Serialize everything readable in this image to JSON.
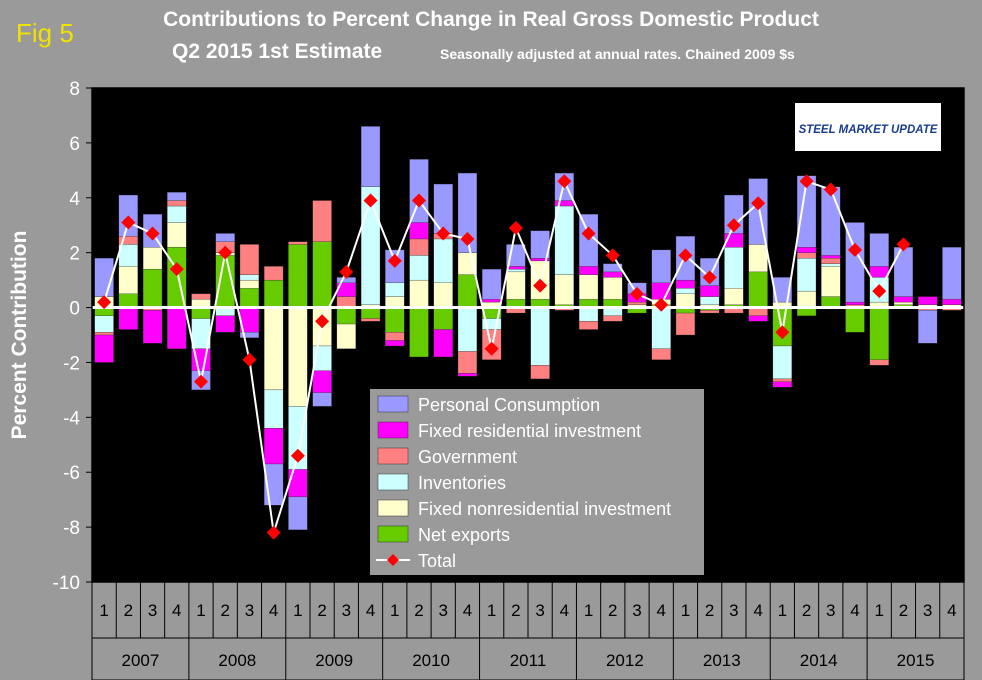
{
  "fig_label": "Fig 5",
  "title": "Contributions to Percent Change in Real Gross Domestic Product",
  "subtitle": "Q2 2015 1st Estimate",
  "note": "Seasonally adjusted at annual rates. Chained 2009 $s",
  "logo_text": "STEEL MARKET UPDATE",
  "colors": {
    "background": "#9a9a9a",
    "plot_background": "#000000",
    "personal_consumption": "#9999ff",
    "fixed_residential": "#ff00ff",
    "government": "#ff8080",
    "inventories": "#ccffff",
    "fixed_nonresidential": "#ffffcc",
    "net_exports": "#66cc00",
    "total_line": "#ffffff",
    "total_marker": "#ff0000"
  },
  "chart_data": {
    "type": "bar",
    "stacked": true,
    "title": "Contributions to Percent Change in Real Gross Domestic Product",
    "subtitle": "Q2 2015 1st Estimate",
    "ylabel": "Percent Contribution",
    "ylim": [
      -10,
      8
    ],
    "yticks": [
      "8",
      "6",
      "4",
      "2",
      "0",
      "-2",
      "-4",
      "-6",
      "-8",
      "-10"
    ],
    "grid": false,
    "legend_position": "center-bottom",
    "quarter_labels": [
      "1",
      "2",
      "3",
      "4",
      "1",
      "2",
      "3",
      "4",
      "1",
      "2",
      "3",
      "4",
      "1",
      "2",
      "3",
      "4",
      "1",
      "2",
      "3",
      "4",
      "1",
      "2",
      "3",
      "4",
      "1",
      "2",
      "3",
      "4",
      "1",
      "2",
      "3",
      "4",
      "1",
      "2",
      "3",
      "4"
    ],
    "years": [
      "2007",
      "2008",
      "2009",
      "2010",
      "2011",
      "2012",
      "2013",
      "2014",
      "2015"
    ],
    "series": [
      {
        "name": "Personal Consumption",
        "values": [
          1.4,
          1.5,
          1.2,
          0.3,
          -0.7,
          0.3,
          -0.2,
          -1.5,
          -1.2,
          -0.5,
          0.2,
          2.2,
          1.2,
          2.3,
          1.8,
          2.9,
          1.1,
          0.8,
          1.0,
          1.0,
          1.9,
          0.3,
          0.4,
          1.2,
          1.6,
          1.0,
          1.4,
          2.4,
          0.9,
          2.6,
          2.5,
          2.9,
          1.2,
          1.8,
          -1.2,
          1.9
        ]
      },
      {
        "name": "Fixed residential investment",
        "values": [
          -1.0,
          -0.8,
          -1.2,
          -1.5,
          -0.8,
          -0.6,
          -0.9,
          -1.3,
          -1.0,
          -0.8,
          0.5,
          0.0,
          -0.2,
          0.6,
          -1.0,
          -0.1,
          0.1,
          0.1,
          0.1,
          0.2,
          0.3,
          0.2,
          0.3,
          0.6,
          0.3,
          0.4,
          0.5,
          -0.2,
          -0.2,
          0.2,
          0.1,
          0.1,
          0.4,
          0.2,
          0.3,
          0.2
        ]
      },
      {
        "name": "Government",
        "values": [
          -0.1,
          0.3,
          -0.1,
          0.2,
          0.2,
          0.4,
          1.1,
          0.5,
          0.1,
          1.5,
          0.4,
          -0.1,
          -0.3,
          0.6,
          0.2,
          -0.8,
          -1.1,
          -0.2,
          -0.5,
          -0.1,
          -0.3,
          -0.2,
          0.1,
          -0.4,
          -0.8,
          -0.1,
          -0.2,
          -0.3,
          -0.1,
          0.2,
          0.2,
          0.1,
          -0.2,
          0.0,
          -0.1,
          -0.1
        ]
      },
      {
        "name": "Inventories",
        "values": [
          -0.6,
          0.8,
          0.0,
          0.6,
          -1.1,
          -0.3,
          0.2,
          -1.4,
          -2.3,
          -0.9,
          0.0,
          4.3,
          0.5,
          0.9,
          1.6,
          -1.6,
          -0.4,
          0.1,
          -2.1,
          2.5,
          -0.5,
          -0.3,
          0.0,
          -1.5,
          0.2,
          0.3,
          1.5,
          0.0,
          -1.2,
          1.2,
          0.1,
          0.0,
          0.9,
          0.0,
          0.0,
          0.0
        ]
      },
      {
        "name": "Fixed nonresidential investment",
        "values": [
          0.4,
          1.0,
          0.8,
          0.9,
          0.3,
          0.1,
          0.3,
          -3.0,
          -3.6,
          -1.4,
          -0.9,
          0.1,
          0.4,
          1.0,
          0.9,
          0.8,
          0.2,
          1.0,
          1.4,
          1.1,
          0.9,
          0.8,
          0.1,
          0.2,
          0.5,
          0.1,
          0.6,
          1.0,
          0.2,
          0.6,
          1.1,
          0.0,
          0.2,
          0.1,
          0.1,
          0.1
        ]
      },
      {
        "name": "Net exports",
        "values": [
          -0.3,
          0.5,
          1.4,
          2.2,
          -0.4,
          1.9,
          0.7,
          1.0,
          2.3,
          2.4,
          -0.6,
          -0.4,
          -0.9,
          -1.8,
          -0.8,
          1.2,
          -0.4,
          0.3,
          0.3,
          0.1,
          0.3,
          0.3,
          -0.2,
          0.1,
          -0.2,
          -0.1,
          0.1,
          1.3,
          -1.4,
          -0.3,
          0.4,
          -0.9,
          -1.9,
          0.1,
          0.0,
          0.0
        ]
      },
      {
        "name": "Total",
        "kind": "line",
        "values": [
          0.2,
          3.1,
          2.7,
          1.4,
          -2.7,
          2.0,
          -1.9,
          -8.2,
          -5.4,
          -0.5,
          1.3,
          3.9,
          1.7,
          3.9,
          2.7,
          2.5,
          -1.5,
          2.9,
          0.8,
          4.6,
          2.7,
          1.9,
          0.5,
          0.1,
          1.9,
          1.1,
          3.0,
          3.8,
          -0.9,
          4.6,
          4.3,
          2.1,
          0.6,
          2.3,
          null,
          null
        ]
      }
    ]
  }
}
